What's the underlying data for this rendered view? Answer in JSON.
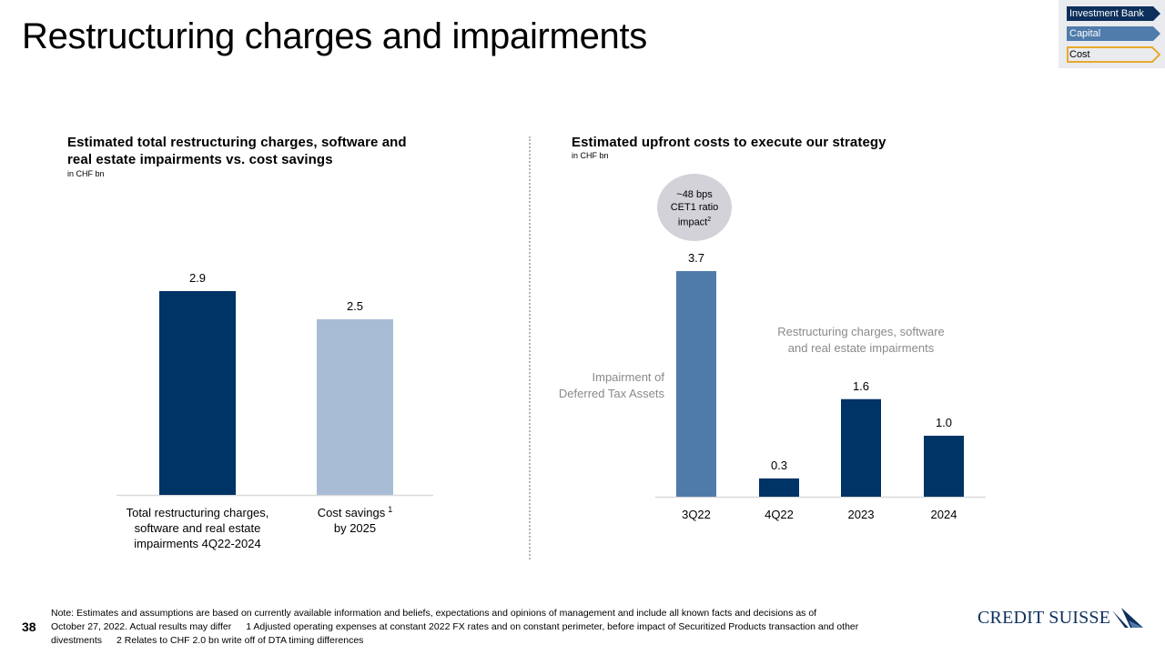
{
  "title": "Restructuring charges and impairments",
  "nav": {
    "items": [
      {
        "label": "Investment Bank",
        "state": "filled-dark"
      },
      {
        "label": "Capital",
        "state": "filled-medium"
      },
      {
        "label": "Cost",
        "state": "active-outline"
      }
    ],
    "colors": {
      "dark": "#0c2f5c",
      "medium": "#4f7cab",
      "active_outline": "#e8a92a",
      "active_fill": "#e9ebee"
    }
  },
  "colors": {
    "dark_navy": "#003366",
    "light_blue": "#a9bcd5",
    "steel_blue": "#4f7bab",
    "annotation_gray": "#8a8a8a",
    "bubble_gray": "#d2d2d8"
  },
  "chart_data": [
    {
      "type": "bar",
      "title": "Estimated total restructuring charges, software and real estate impairments vs. cost savings",
      "title_lines": [
        "Estimated total restructuring charges, software and",
        "real estate impairments vs. cost savings"
      ],
      "unit": "in CHF bn",
      "categories": [
        "Total restructuring charges, software and real estate impairments 4Q22-2024",
        "Cost savings by 2025"
      ],
      "category_lines": [
        [
          "Total restructuring charges,",
          "software and real estate",
          "impairments 4Q22-2024"
        ],
        [
          "Cost savings",
          "by 2025"
        ]
      ],
      "category_superscripts": [
        "",
        "1"
      ],
      "values": [
        2.9,
        2.5
      ],
      "value_labels": [
        "2.9",
        "2.5"
      ],
      "bar_colors": [
        "#003366",
        "#a9bcd5"
      ],
      "xlabel": "",
      "ylabel": "",
      "ylim": [
        0,
        2.9
      ],
      "grid": false,
      "legend": "none"
    },
    {
      "type": "bar",
      "title": "Estimated upfront costs to execute our strategy",
      "unit": "in CHF bn",
      "categories": [
        "3Q22",
        "4Q22",
        "2023",
        "2024"
      ],
      "values": [
        3.7,
        0.3,
        1.6,
        1.0
      ],
      "value_labels": [
        "3.7",
        "0.3",
        "1.6",
        "1.0"
      ],
      "bar_colors": [
        "#4f7bab",
        "#003366",
        "#003366",
        "#003366"
      ],
      "xlabel": "",
      "ylabel": "",
      "ylim": [
        0,
        3.7
      ],
      "grid": false,
      "legend": "none",
      "annotations": {
        "dta": [
          "Impairment of",
          "Deferred Tax Assets"
        ],
        "restructuring": [
          "Restructuring charges, software",
          "and real estate impairments"
        ],
        "bubble": {
          "lines": [
            "~48 bps",
            "CET1 ratio",
            "impact"
          ],
          "superscript": "2"
        }
      }
    }
  ],
  "footer": {
    "page_number": "38",
    "note_line1": "Note: Estimates and assumptions are based on currently available information and beliefs, expectations and opinions of management and include all known facts and decisions as of",
    "note_line2a": "October 27, 2022. Actual results may differ",
    "note_line2b": "1 Adjusted operating expenses at constant 2022 FX rates and on constant perimeter, before impact of Securitized Products transaction and other",
    "note_line3a": "divestments",
    "note_line3b": "2 Relates to CHF 2.0 bn write off of DTA timing differences",
    "logo_text": "CREDIT SUISSE"
  }
}
